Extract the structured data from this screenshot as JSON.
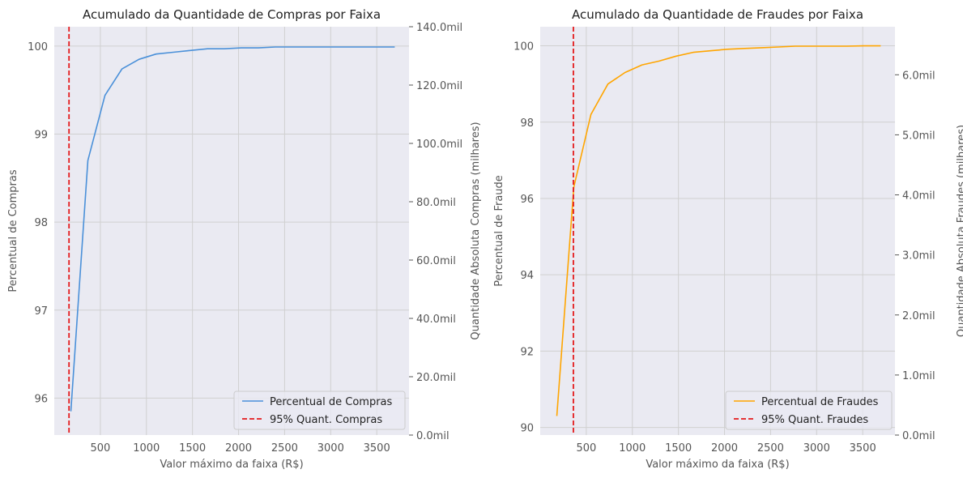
{
  "chart_data": [
    {
      "type": "line",
      "title": "Acumulado da Quantidade de Compras por Faixa",
      "xlabel": "Valor máximo da faixa (R$)",
      "ylabel": "Percentual de Compras",
      "ylabel_right": "Quantidade Absoluta Compras (milhares)",
      "xlim": [
        0,
        3850
      ],
      "ylim": [
        95.58,
        100.22
      ],
      "ylim_right": [
        0,
        140000
      ],
      "x_ticks": [
        500,
        1000,
        1500,
        2000,
        2500,
        3000,
        3500
      ],
      "y_ticks": [
        96,
        97,
        98,
        99,
        100
      ],
      "y_ticks_right": [
        "0.0mil",
        "20.0mil",
        "40.0mil",
        "60.0mil",
        "80.0mil",
        "100.0mil",
        "120.0mil",
        "140.0mil"
      ],
      "y_ticks_right_values": [
        0,
        20000,
        40000,
        60000,
        80000,
        100000,
        120000,
        140000
      ],
      "series": [
        {
          "name": "Percentual de Compras",
          "color": "#4a90d9",
          "style": "solid",
          "x": [
            180,
            365,
            550,
            735,
            920,
            1105,
            1290,
            1475,
            1660,
            1845,
            2030,
            2215,
            2400,
            2585,
            2770,
            2955,
            3140,
            3325,
            3510,
            3695
          ],
          "values": [
            95.85,
            98.7,
            99.44,
            99.74,
            99.85,
            99.91,
            99.93,
            99.95,
            99.97,
            99.97,
            99.98,
            99.98,
            99.99,
            99.99,
            99.99,
            99.99,
            99.99,
            99.99,
            99.99,
            99.99
          ]
        }
      ],
      "vline": {
        "name": "95% Quant. Compras",
        "x": 160,
        "color": "#e41a1c",
        "style": "dashed"
      },
      "legend": "lower-right",
      "grid": true
    },
    {
      "type": "line",
      "title": "Acumulado da Quantidade de Fraudes por Faixa",
      "xlabel": "Valor máximo da faixa (R$)",
      "ylabel": "Percentual de Fraude",
      "ylabel_right": "Quantidade Absoluta Fraudes (milhares)",
      "xlim": [
        0,
        3850
      ],
      "ylim": [
        89.8,
        100.5
      ],
      "ylim_right": [
        0,
        6800
      ],
      "x_ticks": [
        500,
        1000,
        1500,
        2000,
        2500,
        3000,
        3500
      ],
      "y_ticks": [
        90,
        92,
        94,
        96,
        98,
        100
      ],
      "y_ticks_right": [
        "0.0mil",
        "1.0mil",
        "2.0mil",
        "3.0mil",
        "4.0mil",
        "5.0mil",
        "6.0mil"
      ],
      "y_ticks_right_values": [
        0,
        1000,
        2000,
        3000,
        4000,
        5000,
        6000
      ],
      "series": [
        {
          "name": "Percentual de Fraudes",
          "color": "#ffa500",
          "style": "solid",
          "x": [
            180,
            365,
            550,
            735,
            920,
            1105,
            1290,
            1475,
            1660,
            1845,
            2030,
            2215,
            2400,
            2585,
            2770,
            2955,
            3140,
            3325,
            3510,
            3695
          ],
          "values": [
            90.3,
            96.3,
            98.2,
            99.0,
            99.3,
            99.5,
            99.6,
            99.73,
            99.83,
            99.87,
            99.91,
            99.93,
            99.95,
            99.97,
            99.99,
            99.99,
            99.99,
            99.99,
            100.0,
            100.0
          ]
        }
      ],
      "vline": {
        "name": "95% Quant. Fraudes",
        "x": 360,
        "color": "#e41a1c",
        "style": "dashed"
      },
      "legend": "lower-right",
      "grid": true
    }
  ]
}
